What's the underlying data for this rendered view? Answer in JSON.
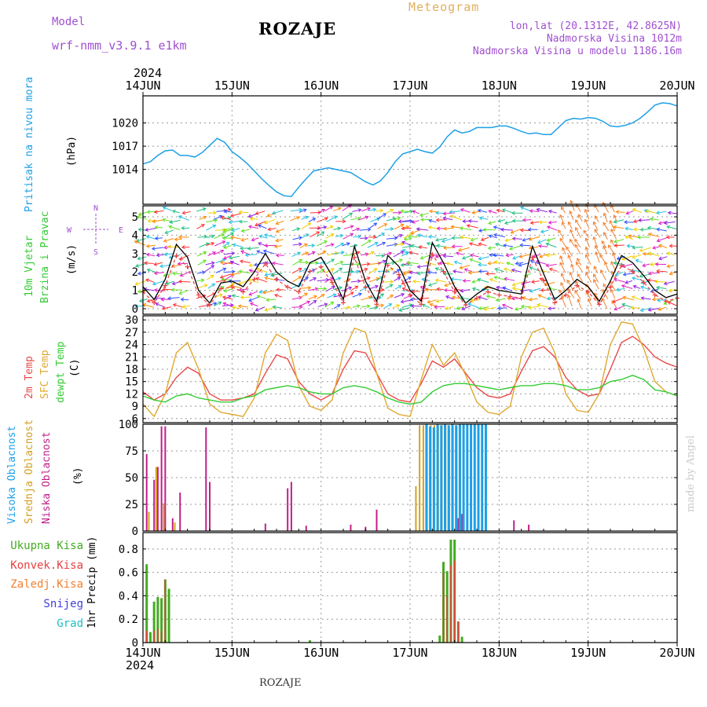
{
  "header": {
    "model_label": "Model",
    "model_name": "wrf-nmm_v3.9.1  e1km",
    "title": "ROZAJE",
    "product": "Meteogram",
    "coords": "lon,lat (20.1312E, 42.8625N)",
    "elevation": "Nadmorska Visina 1012m",
    "model_elevation": "Nadmorska Visina u modelu 1186.16m",
    "year_top": "2024",
    "year_bottom": "2024",
    "footer": "ROZAJE",
    "credit": "made by Angel"
  },
  "colors": {
    "pressure": "#1ea0e6",
    "t2m": "#e84a4a",
    "sfc": "#e0a830",
    "dewpt": "#33cc33",
    "high_cloud": "#1ea0e6",
    "mid_cloud": "#d4a020",
    "low_cloud": "#c0208a",
    "total_precip": "#44aa22",
    "conv_precip": "#e84040",
    "frozen_precip": "#f08030",
    "snow": "#4040e0",
    "hail": "#20c0c0",
    "header_purple": "#a050d0",
    "header_orange": "#e0b060"
  },
  "x_axis": {
    "labels": [
      "14JUN",
      "15JUN",
      "16JUN",
      "17JUN",
      "18JUN",
      "19JUN",
      "20JUN"
    ],
    "range_hours": [
      0,
      144
    ]
  },
  "panel_labels": {
    "pressure": {
      "name": "Pritisak na nivou mora",
      "unit": "(hPa)"
    },
    "wind": {
      "line1": "10m Vjetar",
      "line2": "Brzina i Pravac",
      "unit": "(m/s)",
      "compass_n": "N",
      "compass_s": "S",
      "compass_w": "W",
      "compass_e": "E"
    },
    "temp": {
      "t2m": "2m Temp",
      "sfc": "SFC Temp",
      "dewpt": "dewpt Temp",
      "unit": "(C)"
    },
    "cloud": {
      "high": "Visoka Oblacnost",
      "mid": "Srednja Oblacnost",
      "low": "Niska Oblacnost",
      "unit": "(%)"
    },
    "precip": {
      "unit": "1hr Precip (mm)"
    }
  },
  "precip_legend": [
    "Ukupna Kisa",
    "Konvek.Kisa",
    "Zaledj.Kisa",
    "Snijeg",
    "Grad"
  ],
  "chart_data": [
    {
      "type": "line",
      "name": "pressure",
      "ylabel": "(hPa)",
      "ylim": [
        1009.5,
        1023.5
      ],
      "yticks": [
        1014,
        1017,
        1020
      ],
      "x_hours": [
        0,
        2,
        4,
        6,
        8,
        10,
        12,
        14,
        16,
        18,
        20,
        22,
        24,
        26,
        28,
        30,
        32,
        34,
        36,
        38,
        40,
        42,
        44,
        46,
        48,
        50,
        52,
        54,
        56,
        58,
        60,
        62,
        64,
        66,
        68,
        70,
        72,
        74,
        76,
        78,
        80,
        82,
        84,
        86,
        88,
        90,
        92,
        94,
        96,
        98,
        100,
        102,
        104,
        106,
        108,
        110,
        112,
        114,
        116,
        118,
        120,
        122,
        124,
        126,
        128,
        130,
        132,
        134,
        136,
        138,
        140,
        142,
        144
      ],
      "values": [
        1014.7,
        1015.0,
        1015.8,
        1016.4,
        1016.5,
        1015.8,
        1015.8,
        1015.6,
        1016.2,
        1017.1,
        1018.0,
        1017.5,
        1016.3,
        1015.6,
        1014.8,
        1013.8,
        1012.8,
        1011.9,
        1011.1,
        1010.6,
        1010.5,
        1011.7,
        1012.8,
        1013.8,
        1014.0,
        1014.2,
        1014.0,
        1013.8,
        1013.6,
        1013.0,
        1012.4,
        1012.0,
        1012.5,
        1013.6,
        1015.0,
        1016.0,
        1016.3,
        1016.6,
        1016.3,
        1016.1,
        1016.9,
        1018.2,
        1019.1,
        1018.7,
        1018.9,
        1019.4,
        1019.4,
        1019.4,
        1019.6,
        1019.6,
        1019.3,
        1018.9,
        1018.6,
        1018.7,
        1018.5,
        1018.5,
        1019.4,
        1020.3,
        1020.6,
        1020.5,
        1020.7,
        1020.6,
        1020.2,
        1019.6,
        1019.5,
        1019.7,
        1020.0,
        1020.6,
        1021.4,
        1022.3,
        1022.6,
        1022.5,
        1022.2
      ]
    },
    {
      "type": "line",
      "name": "wind_speed",
      "ylabel": "(m/s)",
      "ylim": [
        -0.3,
        5.6
      ],
      "yticks": [
        0,
        1,
        2,
        3,
        4,
        5
      ],
      "x_hours": [
        0,
        3,
        6,
        9,
        12,
        15,
        18,
        21,
        24,
        27,
        30,
        33,
        36,
        39,
        42,
        45,
        48,
        51,
        54,
        57,
        60,
        63,
        66,
        69,
        72,
        75,
        78,
        81,
        84,
        87,
        90,
        93,
        96,
        99,
        102,
        105,
        108,
        111,
        114,
        117,
        120,
        123,
        126,
        129,
        132,
        135,
        138,
        141,
        144
      ],
      "values": [
        1.2,
        0.5,
        1.6,
        3.5,
        2.8,
        1.0,
        0.3,
        1.4,
        1.5,
        1.2,
        2.0,
        3.0,
        2.0,
        1.5,
        1.2,
        2.5,
        2.8,
        1.8,
        0.5,
        3.4,
        1.5,
        0.4,
        2.9,
        2.3,
        1.0,
        0.4,
        3.6,
        2.5,
        1.2,
        0.3,
        0.8,
        1.2,
        1.0,
        0.9,
        0.8,
        3.4,
        1.9,
        0.5,
        1.0,
        1.6,
        1.2,
        0.4,
        1.5,
        2.9,
        2.5,
        1.8,
        1.0,
        0.6,
        0.8
      ]
    },
    {
      "type": "line",
      "name": "temperature",
      "ylabel": "(C)",
      "ylim": [
        5,
        31
      ],
      "yticks": [
        6,
        9,
        12,
        15,
        18,
        21,
        24,
        27,
        30
      ],
      "x_hours": [
        0,
        3,
        6,
        9,
        12,
        15,
        18,
        21,
        24,
        27,
        30,
        33,
        36,
        39,
        42,
        45,
        48,
        51,
        54,
        57,
        60,
        63,
        66,
        69,
        72,
        75,
        78,
        81,
        84,
        87,
        90,
        93,
        96,
        99,
        102,
        105,
        108,
        111,
        114,
        117,
        120,
        123,
        126,
        129,
        132,
        135,
        138,
        141,
        144
      ],
      "series": [
        {
          "name": "2m Temp",
          "values": [
            12.5,
            10.5,
            12.0,
            16.0,
            18.5,
            17.0,
            12.0,
            10.5,
            10.5,
            11.0,
            12.0,
            17.0,
            21.5,
            20.5,
            15.0,
            12.0,
            10.5,
            12.0,
            18.0,
            22.5,
            22.0,
            17.0,
            12.0,
            10.5,
            10.0,
            14.5,
            20.0,
            18.5,
            20.5,
            17.0,
            13.5,
            11.5,
            11.0,
            12.0,
            17.5,
            22.5,
            23.5,
            21.0,
            16.0,
            13.0,
            11.5,
            12.0,
            18.0,
            24.5,
            26.0,
            24.0,
            21.0,
            19.5,
            18.5
          ]
        },
        {
          "name": "SFC Temp",
          "values": [
            9.5,
            6.5,
            12.0,
            22.0,
            24.5,
            18.0,
            9.5,
            7.5,
            7.0,
            6.5,
            11.0,
            22.0,
            26.5,
            25.0,
            14.0,
            9.0,
            8.0,
            10.5,
            22.0,
            28.0,
            27.0,
            17.0,
            8.5,
            7.0,
            6.5,
            15.5,
            24.0,
            19.0,
            22.0,
            16.5,
            10.0,
            7.5,
            7.0,
            9.0,
            21.0,
            27.0,
            28.0,
            22.0,
            12.0,
            8.0,
            7.5,
            12.0,
            24.0,
            29.5,
            29.0,
            23.0,
            15.0,
            12.5,
            11.5
          ]
        },
        {
          "name": "dewpt Temp",
          "values": [
            11.5,
            10.5,
            10.0,
            11.5,
            12.0,
            11.0,
            10.5,
            10.0,
            10.0,
            11.0,
            11.5,
            13.0,
            13.5,
            14.0,
            13.5,
            12.5,
            12.0,
            12.0,
            13.5,
            14.0,
            13.5,
            12.5,
            11.0,
            10.0,
            9.5,
            10.0,
            12.5,
            14.0,
            14.5,
            14.5,
            14.0,
            13.5,
            13.0,
            13.5,
            14.0,
            14.0,
            14.5,
            14.5,
            14.0,
            13.0,
            13.0,
            13.5,
            15.0,
            15.5,
            16.5,
            15.5,
            13.0,
            12.5,
            11.5
          ]
        }
      ]
    },
    {
      "type": "bar",
      "name": "cloud_cover",
      "ylabel": "(%)",
      "ylim": [
        0,
        100
      ],
      "yticks": [
        0,
        25,
        50,
        75,
        100
      ],
      "series": [
        {
          "name": "Niska Oblacnost",
          "points": [
            [
              1,
              72
            ],
            [
              3,
              48
            ],
            [
              4,
              60
            ],
            [
              5,
              98
            ],
            [
              6,
              98
            ],
            [
              8,
              12
            ],
            [
              10,
              36
            ],
            [
              17,
              97
            ],
            [
              18,
              46
            ],
            [
              33,
              7
            ],
            [
              39,
              40
            ],
            [
              40,
              46
            ],
            [
              44,
              5
            ],
            [
              56,
              6
            ],
            [
              60,
              4
            ],
            [
              63,
              20
            ],
            [
              85,
              12
            ],
            [
              86,
              16
            ],
            [
              100,
              10
            ],
            [
              104,
              6
            ]
          ]
        },
        {
          "name": "Srednja Oblacnost",
          "points": [
            [
              2,
              18
            ],
            [
              4,
              60
            ],
            [
              6,
              26
            ],
            [
              9,
              8
            ],
            [
              74,
              42
            ],
            [
              75,
              99
            ],
            [
              76,
              99
            ],
            [
              77,
              99
            ],
            [
              78,
              99
            ],
            [
              79,
              99
            ],
            [
              80,
              99
            ],
            [
              81,
              99
            ],
            [
              82,
              99
            ],
            [
              83,
              95
            ],
            [
              84,
              97
            ],
            [
              85,
              99
            ],
            [
              86,
              99
            ]
          ]
        },
        {
          "name": "Visoka Oblacnost",
          "points": [
            [
              76,
              100
            ],
            [
              77,
              98
            ],
            [
              78,
              97
            ],
            [
              79,
              100
            ],
            [
              80,
              99
            ],
            [
              81,
              100
            ],
            [
              82,
              99
            ],
            [
              83,
              100
            ],
            [
              84,
              99
            ],
            [
              85,
              100
            ],
            [
              86,
              100
            ],
            [
              87,
              100
            ],
            [
              88,
              100
            ],
            [
              89,
              100
            ],
            [
              90,
              100
            ],
            [
              91,
              100
            ],
            [
              92,
              100
            ]
          ]
        }
      ]
    },
    {
      "type": "bar",
      "name": "precipitation",
      "ylabel": "1hr Precip (mm)",
      "ylim": [
        0,
        0.94
      ],
      "yticks": [
        0,
        0.2,
        0.4,
        0.6,
        0.8
      ],
      "series": [
        {
          "name": "Ukupna Kisa",
          "points": [
            [
              1,
              0.67
            ],
            [
              2,
              0.09
            ],
            [
              3,
              0.35
            ],
            [
              4,
              0.39
            ],
            [
              5,
              0.38
            ],
            [
              6,
              0.54
            ],
            [
              7,
              0.46
            ],
            [
              45,
              0.02
            ],
            [
              80,
              0.06
            ],
            [
              81,
              0.69
            ],
            [
              82,
              0.61
            ],
            [
              83,
              0.88
            ],
            [
              84,
              0.88
            ],
            [
              85,
              0.18
            ],
            [
              86,
              0.05
            ]
          ]
        },
        {
          "name": "Konvek.Kisa",
          "points": [
            [
              1,
              0.1
            ],
            [
              3,
              0.1
            ],
            [
              4,
              0.12
            ],
            [
              5,
              0.1
            ],
            [
              6,
              0.54
            ],
            [
              81,
              0.6
            ],
            [
              82,
              0.4
            ],
            [
              83,
              0.66
            ],
            [
              84,
              0.7
            ],
            [
              85,
              0.18
            ]
          ]
        }
      ]
    }
  ]
}
